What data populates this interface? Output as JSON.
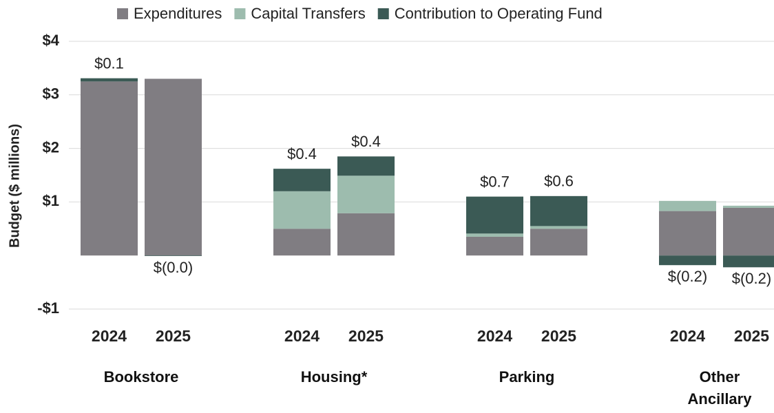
{
  "chart_data": {
    "type": "bar",
    "stacked": true,
    "y_label": "Budget ($ millions)",
    "groups": [
      "Bookstore",
      "Housing*",
      "Parking",
      "Other Ancillary"
    ],
    "categories": [
      "2024",
      "2025",
      "2024",
      "2025",
      "2024",
      "2025",
      "2024",
      "2025"
    ],
    "series": [
      {
        "name": "Expenditures",
        "color": "#807d82",
        "values": [
          3.25,
          3.3,
          0.5,
          0.79,
          0.35,
          0.5,
          0.83,
          0.89
        ]
      },
      {
        "name": "Capital Transfers",
        "color": "#9dbcae",
        "values": [
          0,
          0,
          0.7,
          0.7,
          0.06,
          0.05,
          0.19,
          0.04
        ]
      },
      {
        "name": "Contribution to Operating Fund",
        "color": "#3b5a55",
        "values": [
          0.06,
          -0.01,
          0.42,
          0.36,
          0.69,
          0.56,
          -0.18,
          -0.22
        ],
        "value_labels": [
          "$0.1",
          "$(0.0)",
          "$0.4",
          "$0.4",
          "$0.7",
          "$0.6",
          "$(0.2)",
          "$(0.2)"
        ]
      }
    ],
    "ylim": [
      -1,
      4
    ],
    "yticks": [
      {
        "value": -1,
        "label": "-$1"
      },
      {
        "value": 1,
        "label": "$1"
      },
      {
        "value": 2,
        "label": "$2"
      },
      {
        "value": 3,
        "label": "$3"
      },
      {
        "value": 4,
        "label": "$4"
      }
    ],
    "grid": true,
    "legend": "top"
  }
}
